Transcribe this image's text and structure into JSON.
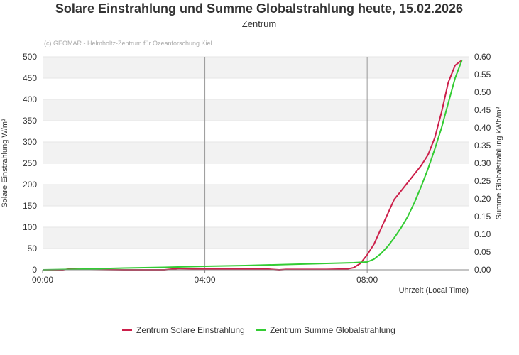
{
  "chart_data": {
    "type": "line",
    "title": "Solare Einstrahlung und Summe Globalstrahlung heute, 15.02.2026",
    "subtitle": "Zentrum",
    "credit": "(c) GEOMAR - Helmholtz-Zentrum für Ozeanforschung Kiel",
    "xlabel": "Uhrzeit (Local Time)",
    "ylabel": "Solare Einstrahlung W/m²",
    "y2label": "Summe Globalstrahlung kWh/m²",
    "xlim": [
      "00:00",
      "10:30"
    ],
    "x_ticks": [
      "00:00",
      "04:00",
      "08:00"
    ],
    "ylim": [
      0,
      500
    ],
    "y_ticks": [
      "0",
      "50",
      "100",
      "150",
      "200",
      "250",
      "300",
      "350",
      "400",
      "450",
      "500"
    ],
    "y2lim": [
      0,
      0.6
    ],
    "y2_ticks": [
      "0.00",
      "0.05",
      "0.10",
      "0.15",
      "0.20",
      "0.25",
      "0.30",
      "0.35",
      "0.40",
      "0.45",
      "0.50",
      "0.55",
      "0.60"
    ],
    "vertical_lines": [
      "04:00",
      "08:00"
    ],
    "grid": "alternating horizontal bands",
    "legend": "bottom-center",
    "series": [
      {
        "name": "Zentrum Solare Einstrahlung",
        "color": "#cc1f4a",
        "axis": "left",
        "x": [
          "00:00",
          "00:30",
          "00:40",
          "01:00",
          "02:00",
          "03:00",
          "03:20",
          "04:00",
          "05:00",
          "05:30",
          "05:50",
          "06:00",
          "07:00",
          "07:30",
          "07:40",
          "07:50",
          "08:00",
          "08:10",
          "08:20",
          "08:30",
          "08:40",
          "08:50",
          "09:00",
          "09:10",
          "09:20",
          "09:30",
          "09:40",
          "09:50",
          "10:00",
          "10:10",
          "10:20"
        ],
        "values": [
          0,
          0,
          2,
          1,
          0,
          0,
          3,
          2,
          2,
          2,
          0,
          1,
          1,
          2,
          5,
          15,
          35,
          60,
          95,
          130,
          165,
          185,
          205,
          225,
          245,
          270,
          310,
          370,
          440,
          480,
          492
        ]
      },
      {
        "name": "Zentrum Summe Globalstrahlung",
        "color": "#33cc33",
        "axis": "right",
        "x": [
          "00:00",
          "01:00",
          "02:00",
          "03:00",
          "04:00",
          "05:00",
          "06:00",
          "07:00",
          "07:40",
          "08:00",
          "08:10",
          "08:20",
          "08:30",
          "08:40",
          "08:50",
          "09:00",
          "09:10",
          "09:20",
          "09:30",
          "09:40",
          "09:50",
          "10:00",
          "10:10",
          "10:20"
        ],
        "values": [
          0,
          0.002,
          0.005,
          0.007,
          0.01,
          0.012,
          0.015,
          0.018,
          0.02,
          0.022,
          0.03,
          0.045,
          0.065,
          0.09,
          0.118,
          0.15,
          0.19,
          0.235,
          0.285,
          0.34,
          0.4,
          0.47,
          0.54,
          0.59
        ]
      }
    ]
  }
}
